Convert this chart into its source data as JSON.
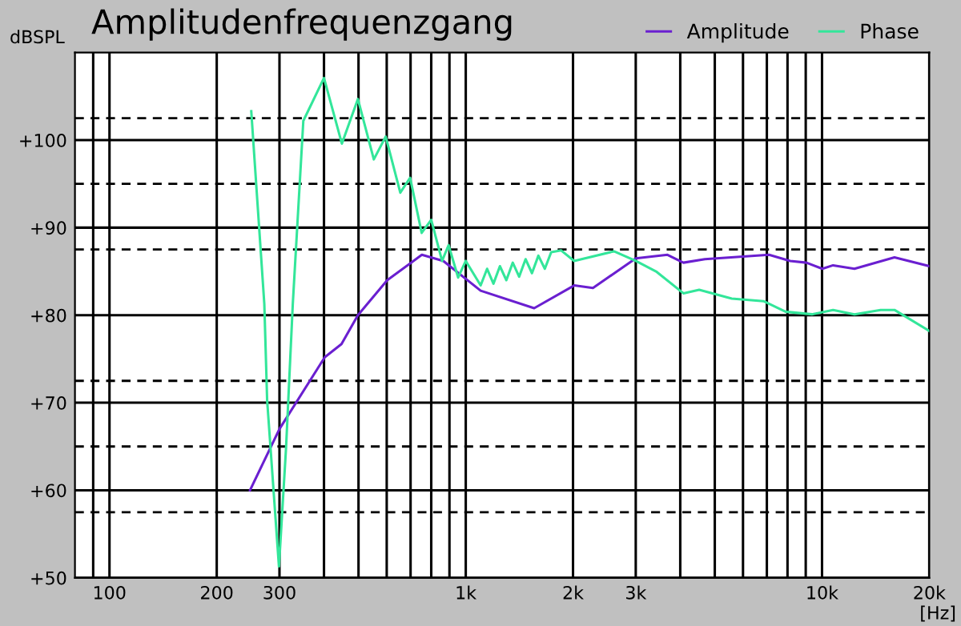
{
  "chart_data": {
    "type": "line",
    "title": "Amplitudenfrequenzgang",
    "xlabel": "[Hz]",
    "ylabel": "dBSPL",
    "log": "x",
    "grid": true,
    "legend": "top right",
    "line_style": "solid",
    "marker": "none",
    "xlim": [
      80,
      20000
    ],
    "ylim": [
      50,
      110
    ],
    "xticks": [
      {
        "value": 90,
        "label": null
      },
      {
        "value": 100,
        "label": "100"
      },
      {
        "value": 200,
        "label": "200"
      },
      {
        "value": 300,
        "label": "300"
      },
      {
        "value": 400,
        "label": null
      },
      {
        "value": 500,
        "label": null
      },
      {
        "value": 600,
        "label": null
      },
      {
        "value": 700,
        "label": null
      },
      {
        "value": 800,
        "label": null
      },
      {
        "value": 900,
        "label": null
      },
      {
        "value": 1000,
        "label": "1k"
      },
      {
        "value": 2000,
        "label": "2k"
      },
      {
        "value": 3000,
        "label": "3k"
      },
      {
        "value": 4000,
        "label": null
      },
      {
        "value": 5000,
        "label": null
      },
      {
        "value": 6000,
        "label": null
      },
      {
        "value": 7000,
        "label": null
      },
      {
        "value": 8000,
        "label": null
      },
      {
        "value": 9000,
        "label": null
      },
      {
        "value": 10000,
        "label": "10k"
      },
      {
        "value": 20000,
        "label": "20k"
      }
    ],
    "yticks": [
      {
        "value": 50,
        "label": "+50"
      },
      {
        "value": 60,
        "label": "+60"
      },
      {
        "value": 70,
        "label": "+70"
      },
      {
        "value": 80,
        "label": "+80"
      },
      {
        "value": 90,
        "label": "+90"
      },
      {
        "value": 100,
        "label": "+100"
      }
    ],
    "ref_lines": [
      {
        "axis": "y",
        "value": 57.5,
        "color": "#000000",
        "line_style": "dashed"
      },
      {
        "axis": "y",
        "value": 65,
        "color": "#000000",
        "line_style": "dashed"
      },
      {
        "axis": "y",
        "value": 72.5,
        "color": "#000000",
        "line_style": "dashed"
      },
      {
        "axis": "y",
        "value": 87.5,
        "color": "#000000",
        "line_style": "dashed"
      },
      {
        "axis": "y",
        "value": 95,
        "color": "#000000",
        "line_style": "dashed"
      },
      {
        "axis": "y",
        "value": 102.5,
        "color": "#000000",
        "line_style": "dashed"
      }
    ],
    "series": [
      {
        "name": "Amplitude",
        "color": "#6a1fd0",
        "x": [
          248,
          300,
          402,
          448,
          498,
          602,
          753,
          865,
          1101,
          1556,
          2015,
          2275,
          3000,
          3683,
          4082,
          4690,
          7100,
          8140,
          9040,
          10020,
          10740,
          12330,
          15970,
          20000
        ],
        "values": [
          60,
          67,
          75.2,
          76.7,
          80,
          84,
          86.9,
          86.2,
          82.8,
          80.8,
          83.4,
          83.1,
          86.5,
          86.9,
          86,
          86.4,
          86.9,
          86.2,
          86,
          85.3,
          85.7,
          85.3,
          86.6,
          85.6
        ]
      },
      {
        "name": "Phase",
        "color": "#33e69a",
        "x": [
          250,
          272,
          277,
          299,
          313,
          327,
          350,
          400,
          449,
          498,
          552,
          596,
          655,
          698,
          752,
          800,
          858,
          895,
          952,
          1000,
          1101,
          1148,
          1196,
          1247,
          1300,
          1355,
          1412,
          1472,
          1534,
          1599,
          1667,
          1737,
          1853,
          2015,
          2606,
          3000,
          3420,
          4082,
          4520,
          5580,
          6850,
          7900,
          9370,
          10740,
          12330,
          14600,
          15970,
          20000
        ],
        "values": [
          103.3,
          81.3,
          70.3,
          51.3,
          64.8,
          81.3,
          102.2,
          107.1,
          99.6,
          104.7,
          97.8,
          100.4,
          94,
          95.7,
          89.4,
          90.9,
          86.2,
          88,
          84.3,
          86.2,
          83.4,
          85.3,
          83.6,
          85.6,
          84,
          86,
          84.4,
          86.4,
          84.8,
          86.8,
          85.3,
          87.2,
          87.4,
          86.2,
          87.3,
          86.2,
          85,
          82.5,
          82.9,
          81.9,
          81.6,
          80.4,
          80.1,
          80.6,
          80.1,
          80.6,
          80.6,
          78.2
        ]
      }
    ]
  }
}
